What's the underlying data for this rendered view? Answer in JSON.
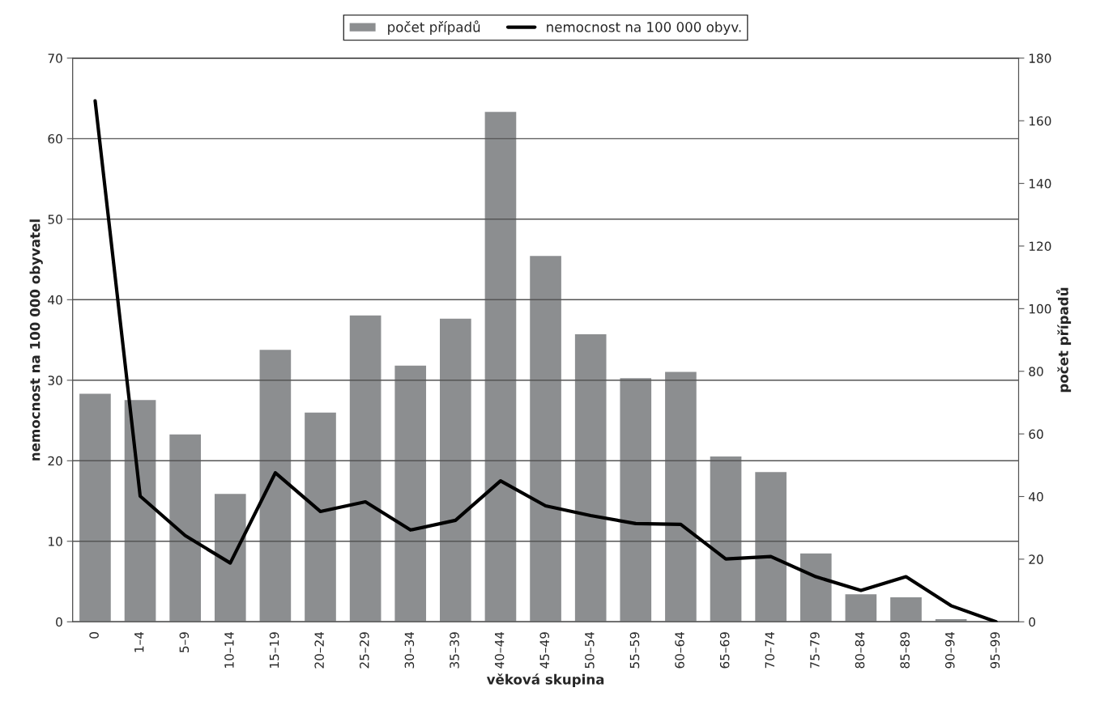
{
  "chart_data": {
    "type": "bar",
    "xlabel": "věková skupina",
    "ylabel": "nemocnost na 100 000 obyvatel",
    "y2label": "počet případů",
    "categories": [
      "0",
      "1–4",
      "5–9",
      "10–14",
      "15–19",
      "20–24",
      "25–29",
      "30–34",
      "35–39",
      "40–44",
      "45–49",
      "50–54",
      "55–59",
      "60–64",
      "65–69",
      "70–74",
      "75–79",
      "80–84",
      "85–89",
      "90–94",
      "95–99"
    ],
    "series": [
      {
        "name": "počet případů",
        "axis": "y2",
        "color": "#8c8e90",
        "values": [
          73,
          71,
          60,
          41,
          87,
          67,
          98,
          82,
          97,
          163,
          117,
          92,
          78,
          80,
          53,
          48,
          22,
          9,
          8,
          1,
          null
        ]
      },
      {
        "name": "nemocnost na 100 000 obyv.",
        "type": "line",
        "color": "#000000",
        "values": [
          64.7,
          15.6,
          10.7,
          7.3,
          18.5,
          13.7,
          14.9,
          11.4,
          12.6,
          17.5,
          14.4,
          13.2,
          12.2,
          12.1,
          7.8,
          8.1,
          5.6,
          3.9,
          5.6,
          2.0,
          0
        ]
      }
    ],
    "ylim": [
      0,
      70
    ],
    "yticks": [
      0,
      10,
      20,
      30,
      40,
      50,
      60,
      70
    ],
    "y2lim": [
      0,
      180
    ],
    "y2ticks": [
      0,
      20,
      40,
      60,
      80,
      100,
      120,
      140,
      160,
      180
    ],
    "grid": "y",
    "legend": "top",
    "marker": "none",
    "line_style": "solid"
  }
}
